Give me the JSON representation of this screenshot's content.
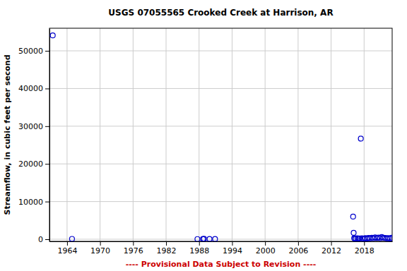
{
  "chart_data": {
    "type": "scatter",
    "title": "USGS 07055565 Crooked Creek at Harrison, AR",
    "ylabel": "Streamflow, in cubic feet per second",
    "annotations": [
      "---- Provisional Data Subject to Revision ----"
    ],
    "x": [
      1961.4,
      1964.9,
      1987.7,
      1988.7,
      1988.9,
      1989.9,
      1990.9,
      2016.0,
      2016.1,
      2016.2,
      2016.3,
      2016.5,
      2016.8,
      2017.0,
      2017.2,
      2017.4,
      2017.6,
      2017.9,
      2018.2,
      2018.5,
      2018.8,
      2019.1,
      2019.4,
      2019.7,
      2020.0,
      2020.3,
      2020.6,
      2020.9,
      2021.2,
      2021.5,
      2021.8,
      2022.1,
      2022.4,
      2022.7,
      2023.0
    ],
    "values": [
      54100,
      100,
      50,
      80,
      120,
      90,
      70,
      6000,
      1700,
      300,
      150,
      200,
      250,
      180,
      220,
      26700,
      260,
      150,
      300,
      200,
      350,
      250,
      400,
      300,
      500,
      350,
      450,
      300,
      600,
      400,
      350,
      250,
      300,
      200,
      400
    ],
    "xlim": [
      1960.8,
      2023.1
    ],
    "xticks": [
      1964,
      1970,
      1976,
      1982,
      1988,
      1994,
      2000,
      2006,
      2012,
      2018
    ],
    "ylim": [
      -560,
      56000
    ],
    "yticks": [
      0,
      10000,
      20000,
      30000,
      40000,
      50000
    ],
    "grid": true,
    "color": "#0000cc",
    "marker": "circle"
  }
}
